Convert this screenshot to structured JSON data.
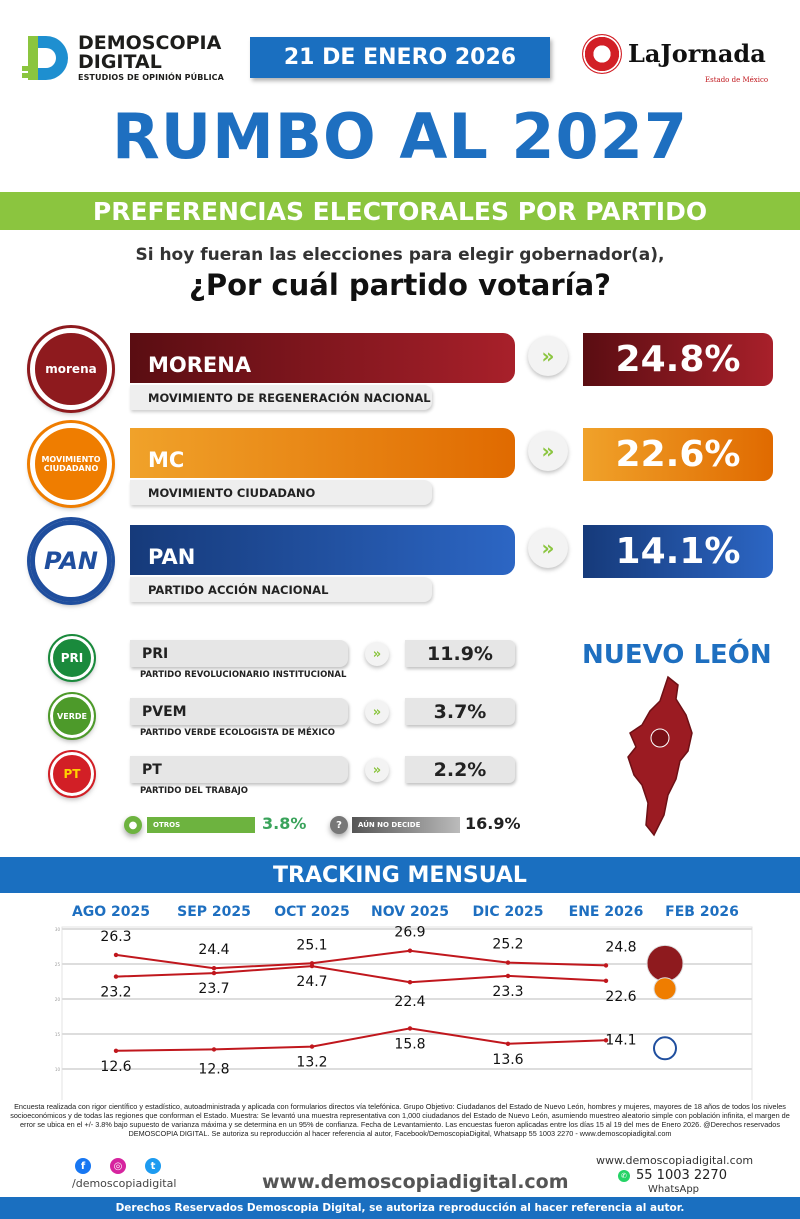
{
  "header": {
    "brand_line1": "DEMOSCOPIA",
    "brand_line2": "DIGITAL",
    "brand_tagline": "ESTUDIOS DE OPINIÓN PÚBLICA",
    "date": "21 DE ENERO 2026",
    "partner_name": "LaJornada",
    "partner_sub": "Estado de México"
  },
  "title": "RUMBO AL 2027",
  "subtitle": "PREFERENCIAS ELECTORALES POR PARTIDO",
  "question_line1": "Si hoy fueran las elecciones para elegir gobernador(a),",
  "question_line2": "¿Por cuál partido votaría?",
  "main_parties": [
    {
      "logo": "morena",
      "short": "MORENA",
      "full": "MOVIMIENTO DE REGENERACIÓN NACIONAL",
      "value": "24.8%",
      "color": "#8e1a1e"
    },
    {
      "logo": "MOVIMIENTO CIUDADANO",
      "short": "MC",
      "full": "MOVIMIENTO CIUDADANO",
      "value": "22.6%",
      "color": "#ef7d00"
    },
    {
      "logo": "PAN",
      "short": "PAN",
      "full": "PARTIDO ACCIÓN NACIONAL",
      "value": "14.1%",
      "color": "#1f4e9e"
    }
  ],
  "minor_parties": [
    {
      "logo": "PRI",
      "short": "PRI",
      "full": "PARTIDO REVOLUCIONARIO INSTITUCIONAL",
      "value": "11.9%",
      "color": "#1a8a3c"
    },
    {
      "logo": "VERDE",
      "short": "PVEM",
      "full": "PARTIDO VERDE ECOLOGISTA DE MÉXICO",
      "value": "3.7%",
      "color": "#4d9a2a"
    },
    {
      "logo": "PT",
      "short": "PT",
      "full": "PARTIDO DEL TRABAJO",
      "value": "2.2%",
      "color": "#d21f26"
    }
  ],
  "others": {
    "label": "OTROS",
    "value": "3.8%"
  },
  "undecided": {
    "label": "AÚN NO DECIDE",
    "value": "16.9%"
  },
  "state": "NUEVO LEÓN",
  "tracking_title": "TRACKING MENSUAL",
  "chart_data": {
    "type": "line",
    "categories": [
      "AGO 2025",
      "SEP 2025",
      "OCT 2025",
      "NOV 2025",
      "DIC 2025",
      "ENE 2026",
      "FEB 2026"
    ],
    "ylim": [
      10,
      30
    ],
    "yticks": [
      10,
      15,
      20,
      25,
      30
    ],
    "grid": true,
    "line_color": "#c0171d",
    "series": [
      {
        "party_logo": "morena",
        "values": [
          26.3,
          24.4,
          25.1,
          26.9,
          25.2,
          24.8,
          null
        ]
      },
      {
        "party_logo": "MC",
        "values": [
          23.2,
          23.7,
          24.7,
          22.4,
          23.3,
          22.6,
          null
        ]
      },
      {
        "party_logo": "PAN",
        "values": [
          12.6,
          12.8,
          13.2,
          15.8,
          13.6,
          14.1,
          null
        ]
      }
    ]
  },
  "footnote": "Encuesta realizada con rigor científico y estadístico, autoadministrada y aplicada con formularios directos vía telefónica. Grupo Objetivo: Ciudadanos del Estado de Nuevo León, hombres y mujeres, mayores de 18 años de todos los niveles socioeconómicos y de todas las regiones que conforman el Estado. Muestra: Se levantó una muestra representativa con 1,000 ciudadanos del Estado de Nuevo León, asumiendo muestreo aleatorio simple con población infinita, el margen de error se ubica en el +/- 3.8% bajo supuesto de varianza máxima y se determina en un 95% de confianza. Fecha de Levantamiento. Las encuestas fueron aplicadas entre los días 15 al 19 del mes de Enero 2026. @Derechos reservados DEMOSCOPIA DIGITAL. Se autoriza su reproducción al hacer referencia al autor, Facebook/DemoscopiaDigital, Whatsapp 55 1003 2270 - www.demoscopiadigital.com",
  "social_handle": "/demoscopiadigital",
  "website": "www.demoscopiadigital.com",
  "contact_site": "www.demoscopiadigital.com",
  "phone": "55 1003 2270",
  "phone_label": "WhatsApp",
  "footer": "Derechos Reservados Demoscopia Digital, se autoriza reproducción al hacer referencia al autor."
}
